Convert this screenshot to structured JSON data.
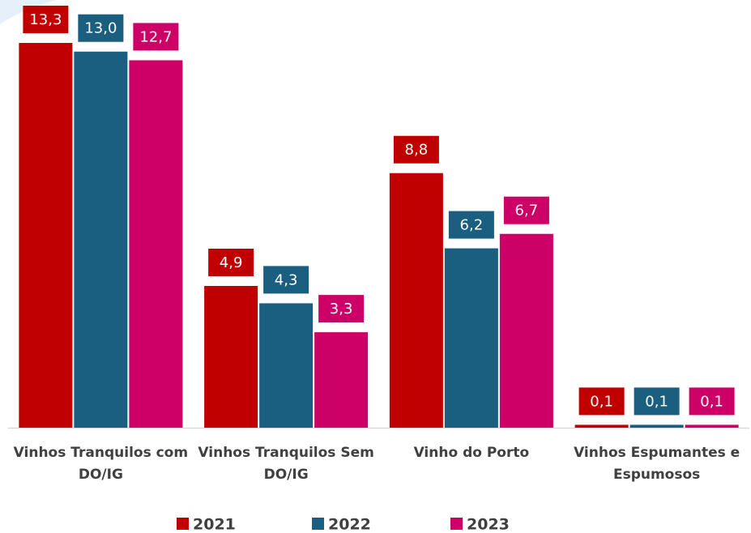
{
  "chart_data": {
    "type": "bar",
    "categories": [
      "Vinhos Tranquilos com DO/IG",
      "Vinhos Tranquilos Sem DO/IG",
      "Vinho do Porto",
      "Vinhos Espumantes e Espumosos"
    ],
    "series": [
      {
        "name": "2021",
        "color": "#c00000",
        "values": [
          13.3,
          4.9,
          8.8,
          0.1
        ],
        "value_labels": [
          "13,3",
          "4,9",
          "8,8",
          "0,1"
        ]
      },
      {
        "name": "2022",
        "color": "#1a5e80",
        "values": [
          13.0,
          4.3,
          6.2,
          0.1
        ],
        "value_labels": [
          "13,0",
          "4,3",
          "6,2",
          "0,1"
        ]
      },
      {
        "name": "2023",
        "color": "#cc0066",
        "values": [
          12.7,
          3.3,
          6.7,
          0.1
        ],
        "value_labels": [
          "12,7",
          "3,3",
          "6,7",
          "0,1"
        ]
      }
    ],
    "legend": "bottom"
  }
}
